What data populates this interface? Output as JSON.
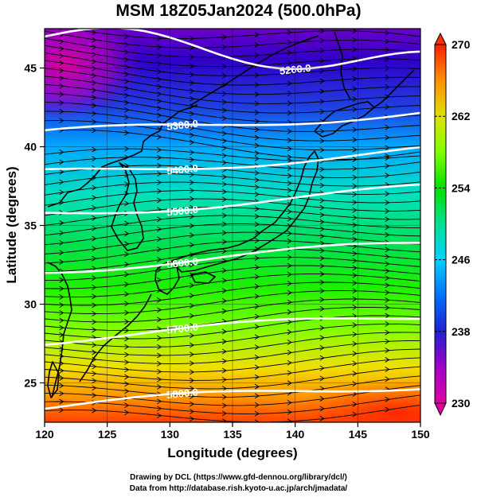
{
  "title": "MSM 18Z05Jan2024 (500.0hPa)",
  "x_axis": {
    "label": "Longitude (degrees)",
    "ticks": [
      {
        "value": 120,
        "label": "120"
      },
      {
        "value": 125,
        "label": "125"
      },
      {
        "value": 130,
        "label": "130"
      },
      {
        "value": 135,
        "label": "135"
      },
      {
        "value": 140,
        "label": "140"
      },
      {
        "value": 145,
        "label": "145"
      },
      {
        "value": 150,
        "label": "150"
      }
    ],
    "range": [
      120,
      150
    ]
  },
  "y_axis": {
    "label": "Latitude  (degrees)",
    "ticks": [
      {
        "value": 25,
        "label": "25"
      },
      {
        "value": 30,
        "label": "30"
      },
      {
        "value": 35,
        "label": "35"
      },
      {
        "value": 40,
        "label": "40"
      },
      {
        "value": 45,
        "label": "45"
      }
    ],
    "range": [
      22.5,
      47.5
    ]
  },
  "colorbar": {
    "range": [
      230,
      270
    ],
    "ticks": [
      {
        "value": 230,
        "label": "230"
      },
      {
        "value": 238,
        "label": "238"
      },
      {
        "value": 246,
        "label": "246"
      },
      {
        "value": 254,
        "label": "254"
      },
      {
        "value": 262,
        "label": "262"
      },
      {
        "value": 270,
        "label": "270"
      }
    ],
    "colors": [
      "#e000a0",
      "#8000c0",
      "#2020d0",
      "#0060ff",
      "#00c0ff",
      "#00e0a0",
      "#00e000",
      "#80ff00",
      "#d8e000",
      "#ffa000",
      "#ff4000",
      "#ff0000"
    ]
  },
  "contours": [
    {
      "label": "5200.0",
      "lat": 47.0
    },
    {
      "label": "5300.0",
      "lat": 41.5
    },
    {
      "label": "5400.0",
      "lat": 39.0
    },
    {
      "label": "5500.0",
      "lat": 36.5
    },
    {
      "label": "5600.0",
      "lat": 33.0
    },
    {
      "label": "5700.0",
      "lat": 28.5
    },
    {
      "label": "5800.0",
      "lat": 24.2
    }
  ],
  "credits": {
    "line1": "Drawing by DCL (https://www.gfd-dennou.org/library/dcl/)",
    "line2": "Data from http://database.rish.kyoto-u.ac.jp/arch/jmadata/"
  }
}
